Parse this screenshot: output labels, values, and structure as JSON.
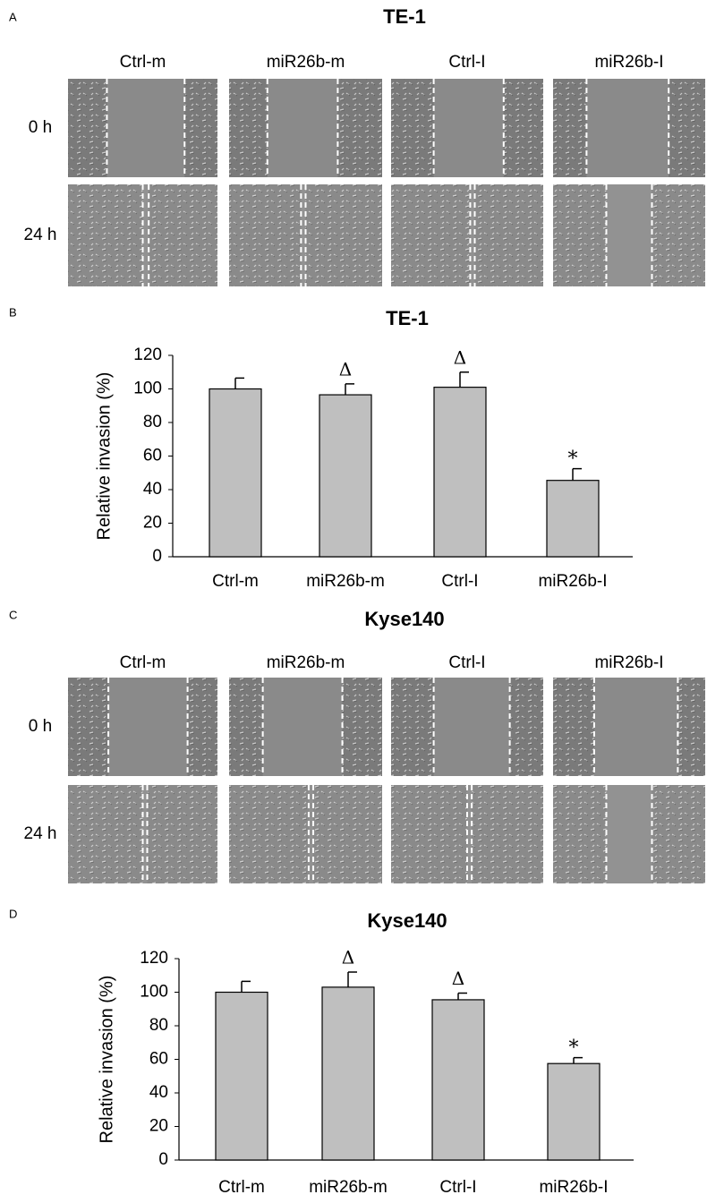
{
  "panels": [
    {
      "letter": "A",
      "title": "TE-1",
      "columns": [
        "Ctrl-m",
        "miR26b-m",
        "Ctrl-I",
        "miR26b-I"
      ],
      "rows": [
        "0 h",
        "24 h"
      ]
    },
    {
      "letter": "C",
      "title": "Kyse140",
      "columns": [
        "Ctrl-m",
        "miR26b-m",
        "Ctrl-I",
        "miR26b-I"
      ],
      "rows": [
        "0 h",
        "24 h"
      ]
    }
  ],
  "chart_data": [
    {
      "type": "bar",
      "label": "B",
      "title": "TE-1",
      "ylabel": "Relative invasion (%)",
      "categories": [
        "Ctrl-m",
        "miR26b-m",
        "Ctrl-I",
        "miR26b-I"
      ],
      "values": [
        100,
        96.5,
        101,
        45.5
      ],
      "errors": [
        6.5,
        6.5,
        9,
        7
      ],
      "annotations": [
        null,
        "Δ",
        "Δ",
        "*"
      ],
      "color": "#bfbfbf",
      "ylim": [
        0,
        120
      ],
      "yticks": [
        0,
        20,
        40,
        60,
        80,
        100,
        120
      ],
      "grid": false
    },
    {
      "type": "bar",
      "label": "D",
      "title": "Kyse140",
      "ylabel": "Relative invasion (%)",
      "categories": [
        "Ctrl-m",
        "miR26b-m",
        "Ctrl-I",
        "miR26b-I"
      ],
      "values": [
        100,
        103,
        95.5,
        57.5
      ],
      "errors": [
        6.5,
        9,
        4,
        3.5
      ],
      "annotations": [
        null,
        "Δ",
        "Δ",
        "*"
      ],
      "color": "#bfbfbf",
      "ylim": [
        0,
        120
      ],
      "yticks": [
        0,
        20,
        40,
        60,
        80,
        100,
        120
      ],
      "grid": false
    }
  ]
}
